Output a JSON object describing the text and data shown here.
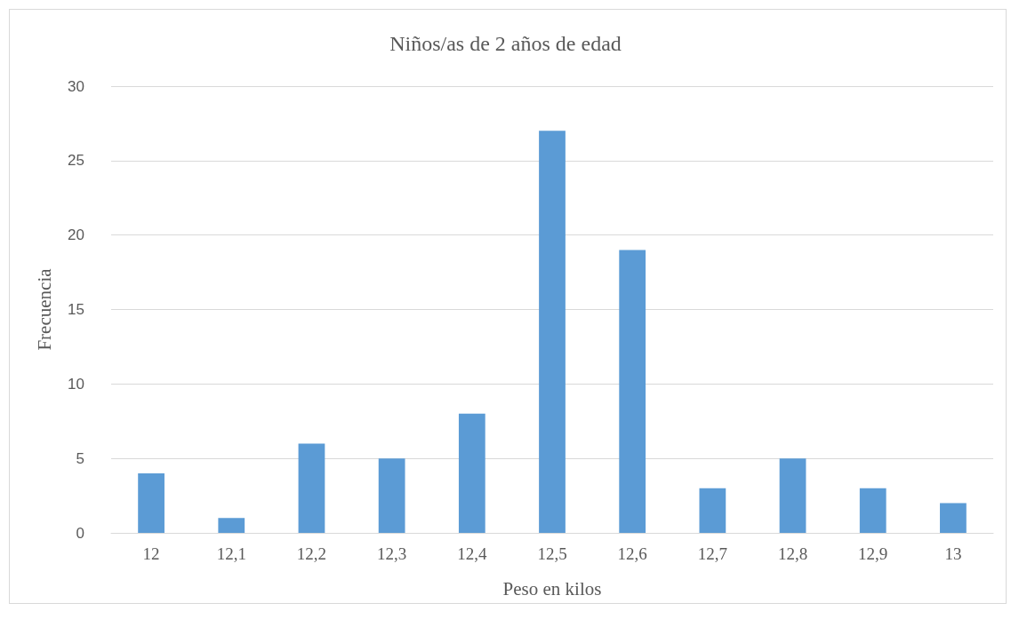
{
  "chart_data": {
    "type": "bar",
    "title": "Niños/as de 2 años de edad",
    "xlabel": "Peso en kilos",
    "ylabel": "Frecuencia",
    "categories": [
      "12",
      "12,1",
      "12,2",
      "12,3",
      "12,4",
      "12,5",
      "12,6",
      "12,7",
      "12,8",
      "12,9",
      "13"
    ],
    "values": [
      4,
      1,
      6,
      5,
      8,
      27,
      19,
      3,
      5,
      3,
      2
    ],
    "color": "#5b9bd5",
    "ylim": [
      0,
      30
    ],
    "yticks": [
      0,
      5,
      10,
      15,
      20,
      25,
      30
    ],
    "grid": "y"
  }
}
